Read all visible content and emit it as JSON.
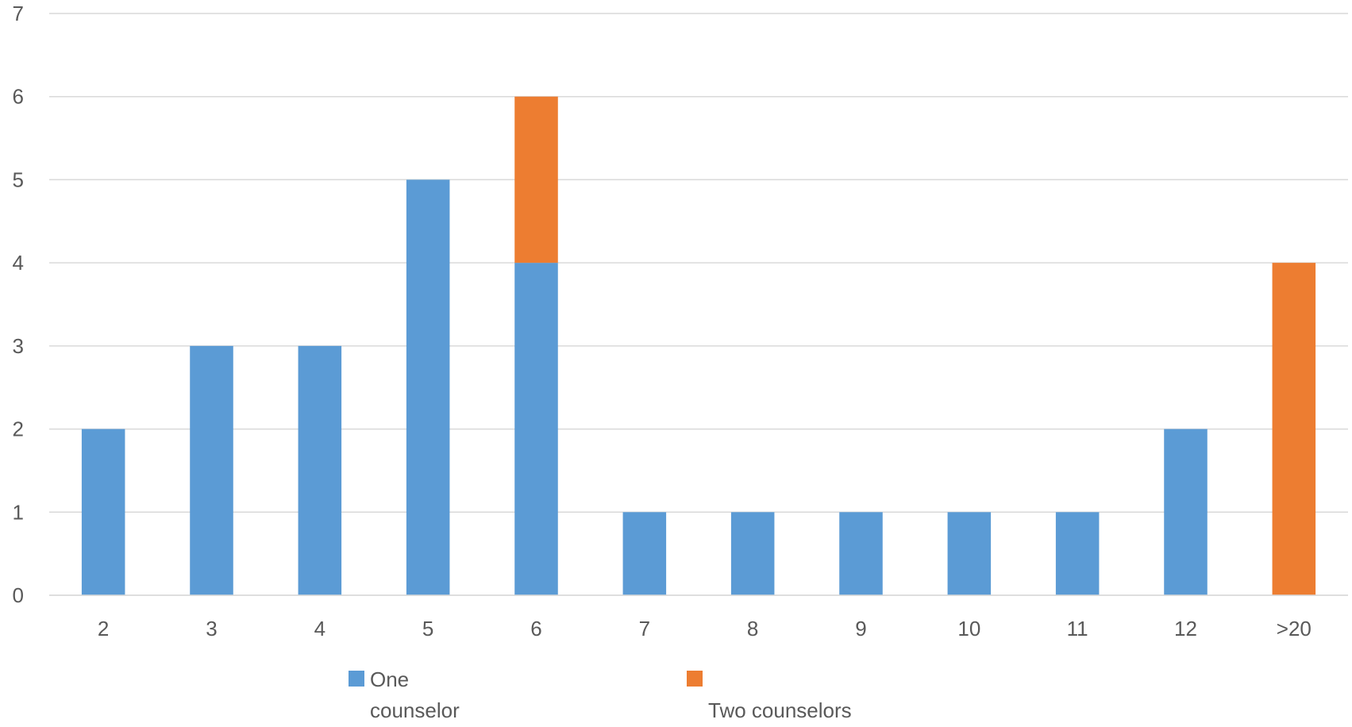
{
  "chart_data": {
    "type": "bar",
    "stacked": true,
    "categories": [
      "2",
      "3",
      "4",
      "5",
      "6",
      "7",
      "8",
      "9",
      "10",
      "11",
      "12",
      ">20"
    ],
    "series": [
      {
        "name": "One counselor",
        "legend_lines": [
          "One",
          "counselor"
        ],
        "color": "#5B9BD5",
        "values": [
          2,
          3,
          3,
          5,
          4,
          1,
          1,
          1,
          1,
          1,
          2,
          0
        ]
      },
      {
        "name": "Two counselors",
        "legend_lines": [
          "",
          "Two counselors"
        ],
        "color": "#ED7D31",
        "values": [
          0,
          0,
          0,
          0,
          2,
          0,
          0,
          0,
          0,
          0,
          0,
          4
        ]
      }
    ],
    "ylim": [
      0,
      7
    ],
    "yticks": [
      "0",
      "1",
      "2",
      "3",
      "4",
      "5",
      "6",
      "7"
    ],
    "grid": true,
    "gridline_color": "#D9D9D9",
    "legend_position": "bottom",
    "title": "",
    "xlabel": "",
    "ylabel": ""
  }
}
